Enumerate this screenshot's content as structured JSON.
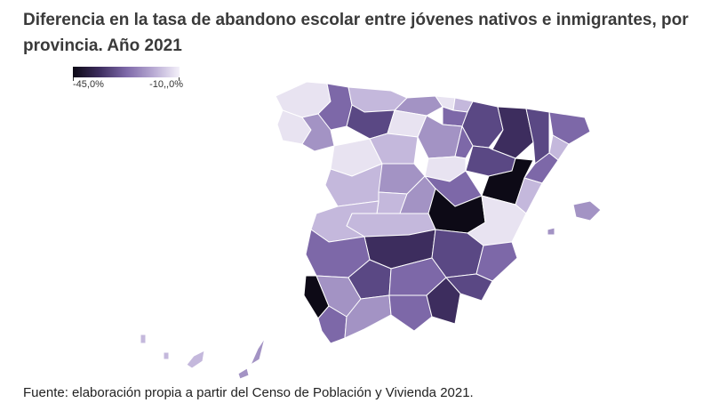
{
  "title": "Diferencia en la tasa de abandono escolar entre jóvenes nativos e inmigrantes, por provincia. Año 2021",
  "legend": {
    "min_label": "-45,0%",
    "max_label": "-10,,0%",
    "min_value": -45.0,
    "max_value": -10.0,
    "color_low": "#0d0a16",
    "color_high": "#f4f1fa"
  },
  "source": "Fuente: elaboración propia a partir del Censo de Población y Vivienda 2021.",
  "map": {
    "region": "España (provincias)",
    "shade_palette": {
      "darkest": "#0d0a16",
      "very_dark": "#3d2d5e",
      "dark": "#5a4884",
      "medium": "#7d68a8",
      "light": "#a393c4",
      "lighter": "#c4b8dc",
      "lightest": "#e8e3f1"
    }
  }
}
